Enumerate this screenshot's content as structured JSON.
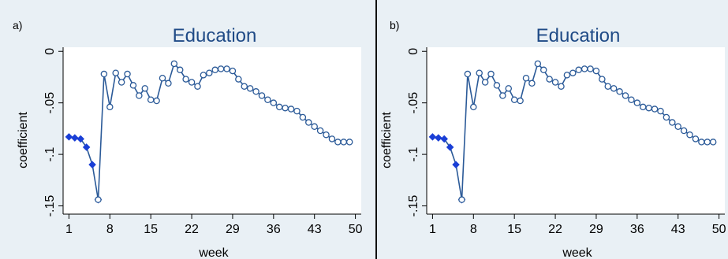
{
  "colors": {
    "outer_bg": "#e9f0f5",
    "plot_bg": "#ffffff",
    "title": "#1f4a86",
    "series_line": "#2b5a98",
    "hollow_marker_stroke": "#2b5a98",
    "filled_marker": "#1a3fd6",
    "axis": "#000000",
    "divider": "#111111"
  },
  "chart_data": [
    {
      "panel_label": "a)",
      "type": "line",
      "title": "Education",
      "xlabel": "week",
      "ylabel": "coefficient",
      "x_ticks": [
        "1",
        "8",
        "15",
        "22",
        "29",
        "36",
        "43",
        "50"
      ],
      "y_ticks": [
        "0",
        "-.05",
        "-.1",
        "-.15"
      ],
      "xlim": [
        0,
        51
      ],
      "ylim": [
        -0.158,
        0.004
      ],
      "grid": false,
      "series": [
        {
          "marker": "filled-diamond",
          "x": [
            1,
            2,
            3,
            4,
            5,
            6
          ],
          "y": [
            -0.083,
            -0.084,
            -0.085,
            -0.093,
            -0.11,
            -0.144
          ]
        },
        {
          "marker": "hollow-circle",
          "x": [
            6,
            7,
            8,
            9,
            10,
            11,
            12,
            13,
            14,
            15,
            16,
            17,
            18,
            19,
            20,
            21,
            22,
            23,
            24,
            25,
            26,
            27,
            28,
            29,
            30,
            31,
            32,
            33,
            34,
            35,
            36,
            37,
            38,
            39,
            40,
            41,
            42,
            43,
            44,
            45,
            46,
            47,
            48,
            49
          ],
          "y": [
            -0.144,
            -0.022,
            -0.054,
            -0.021,
            -0.03,
            -0.022,
            -0.033,
            -0.043,
            -0.036,
            -0.047,
            -0.048,
            -0.026,
            -0.031,
            -0.012,
            -0.018,
            -0.027,
            -0.03,
            -0.034,
            -0.023,
            -0.021,
            -0.018,
            -0.017,
            -0.017,
            -0.019,
            -0.027,
            -0.034,
            -0.036,
            -0.039,
            -0.043,
            -0.047,
            -0.05,
            -0.054,
            -0.055,
            -0.056,
            -0.058,
            -0.064,
            -0.069,
            -0.073,
            -0.077,
            -0.081,
            -0.085,
            -0.088,
            -0.088,
            -0.088
          ]
        }
      ]
    },
    {
      "panel_label": "b)",
      "type": "line",
      "title": "Education",
      "xlabel": "week",
      "ylabel": "coefficient",
      "x_ticks": [
        "1",
        "8",
        "15",
        "22",
        "29",
        "36",
        "43",
        "50"
      ],
      "y_ticks": [
        "0",
        "-.05",
        "-.1",
        "-.15"
      ],
      "xlim": [
        0,
        51
      ],
      "ylim": [
        -0.158,
        0.004
      ],
      "grid": false,
      "series": [
        {
          "marker": "filled-diamond",
          "x": [
            1,
            2,
            3,
            4,
            5,
            6
          ],
          "y": [
            -0.083,
            -0.084,
            -0.085,
            -0.093,
            -0.11,
            -0.144
          ]
        },
        {
          "marker": "hollow-circle",
          "x": [
            6,
            7,
            8,
            9,
            10,
            11,
            12,
            13,
            14,
            15,
            16,
            17,
            18,
            19,
            20,
            21,
            22,
            23,
            24,
            25,
            26,
            27,
            28,
            29,
            30,
            31,
            32,
            33,
            34,
            35,
            36,
            37,
            38,
            39,
            40,
            41,
            42,
            43,
            44,
            45,
            46,
            47,
            48,
            49
          ],
          "y": [
            -0.144,
            -0.022,
            -0.054,
            -0.021,
            -0.03,
            -0.022,
            -0.033,
            -0.043,
            -0.036,
            -0.047,
            -0.048,
            -0.026,
            -0.031,
            -0.012,
            -0.018,
            -0.027,
            -0.03,
            -0.034,
            -0.023,
            -0.021,
            -0.018,
            -0.017,
            -0.017,
            -0.019,
            -0.027,
            -0.034,
            -0.036,
            -0.039,
            -0.043,
            -0.047,
            -0.05,
            -0.054,
            -0.055,
            -0.056,
            -0.058,
            -0.064,
            -0.069,
            -0.073,
            -0.077,
            -0.081,
            -0.085,
            -0.088,
            -0.088,
            -0.088
          ]
        }
      ]
    }
  ]
}
